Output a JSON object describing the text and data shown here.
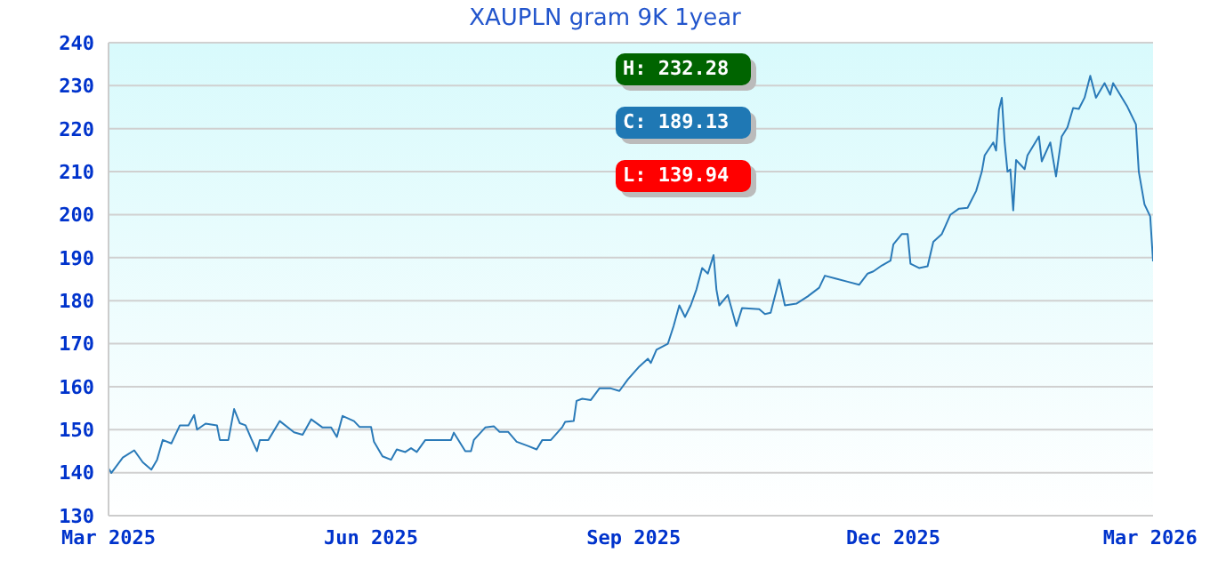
{
  "chart_data": {
    "type": "line",
    "title": "XAUPLN gram 9K 1year",
    "annotations": [
      "H: 232.28",
      "C: 189.13",
      "L: 139.94"
    ],
    "x": [
      "2025-03-01",
      "2025-03-02",
      "2025-03-06",
      "2025-03-10",
      "2025-03-13",
      "2025-03-16",
      "2025-03-18",
      "2025-03-20",
      "2025-03-23",
      "2025-03-26",
      "2025-03-29",
      "2025-03-31",
      "2025-04-01",
      "2025-04-04",
      "2025-04-08",
      "2025-04-09",
      "2025-04-12",
      "2025-04-14",
      "2025-04-16",
      "2025-04-18",
      "2025-04-20",
      "2025-04-22",
      "2025-04-23",
      "2025-04-26",
      "2025-04-30",
      "2025-05-05",
      "2025-05-08",
      "2025-05-11",
      "2025-05-15",
      "2025-05-18",
      "2025-05-20",
      "2025-05-22",
      "2025-05-26",
      "2025-05-28",
      "2025-06-01",
      "2025-06-02",
      "2025-06-05",
      "2025-06-08",
      "2025-06-10",
      "2025-06-13",
      "2025-06-15",
      "2025-06-17",
      "2025-06-20",
      "2025-06-29",
      "2025-06-30",
      "2025-07-04",
      "2025-07-06",
      "2025-07-07",
      "2025-07-11",
      "2025-07-14",
      "2025-07-16",
      "2025-07-19",
      "2025-07-22",
      "2025-07-26",
      "2025-07-29",
      "2025-07-31",
      "2025-08-03",
      "2025-08-07",
      "2025-08-08",
      "2025-08-11",
      "2025-08-12",
      "2025-08-14",
      "2025-08-17",
      "2025-08-20",
      "2025-08-24",
      "2025-08-27",
      "2025-08-30",
      "2025-09-03",
      "2025-09-06",
      "2025-09-07",
      "2025-09-09",
      "2025-09-13",
      "2025-09-15",
      "2025-09-17",
      "2025-09-19",
      "2025-09-21",
      "2025-09-23",
      "2025-09-25",
      "2025-09-27",
      "2025-09-29",
      "2025-09-30",
      "2025-10-01",
      "2025-10-04",
      "2025-10-07",
      "2025-10-09",
      "2025-10-15",
      "2025-10-17",
      "2025-10-19",
      "2025-10-22",
      "2025-10-24",
      "2025-10-28",
      "2025-11-01",
      "2025-11-05",
      "2025-11-07",
      "2025-11-11",
      "2025-11-15",
      "2025-11-19",
      "2025-11-22",
      "2025-11-24",
      "2025-11-27",
      "2025-11-30",
      "2025-12-01",
      "2025-12-04",
      "2025-12-06",
      "2025-12-07",
      "2025-12-10",
      "2025-12-13",
      "2025-12-15",
      "2025-12-18",
      "2025-12-21",
      "2025-12-24",
      "2025-12-27",
      "2025-12-30",
      "2026-01-01",
      "2026-01-02",
      "2026-01-05",
      "2026-01-06",
      "2026-01-07",
      "2026-01-08",
      "2026-01-09",
      "2026-01-10",
      "2026-01-11",
      "2026-01-12",
      "2026-01-13",
      "2026-01-16",
      "2026-01-17",
      "2026-01-21",
      "2026-01-22",
      "2026-01-25",
      "2026-01-27",
      "2026-01-29",
      "2026-01-31",
      "2026-02-02",
      "2026-02-04",
      "2026-02-06",
      "2026-02-08",
      "2026-02-10",
      "2026-02-13",
      "2026-02-15",
      "2026-02-16",
      "2026-02-21",
      "2026-02-24",
      "2026-02-25",
      "2026-02-27",
      "2026-03-01",
      "2026-03-02"
    ],
    "series": [
      {
        "color": "#2a7ab8",
        "values": [
          141,
          139.94,
          143.5,
          145.2,
          142.4,
          140.7,
          143,
          147.6,
          146.8,
          151,
          151,
          153.4,
          150,
          151.4,
          151,
          147.6,
          147.6,
          154.8,
          151.5,
          151,
          147.9,
          145,
          147.6,
          147.6,
          152,
          149.4,
          148.8,
          152.4,
          150.5,
          150.5,
          148.3,
          153.2,
          152,
          150.6,
          150.6,
          147.2,
          143.8,
          143,
          145.4,
          144.8,
          145.7,
          144.8,
          147.6,
          147.6,
          149.3,
          145,
          145,
          147.6,
          150.5,
          150.8,
          149.5,
          149.5,
          147.2,
          146.2,
          145.4,
          147.6,
          147.6,
          150.6,
          151.8,
          152,
          156.7,
          157.2,
          156.9,
          159.6,
          159.6,
          159,
          161.7,
          164.7,
          166.5,
          165.5,
          168.6,
          170,
          174.1,
          178.9,
          176.2,
          178.9,
          182.6,
          187.6,
          186.3,
          190.6,
          182.6,
          178.9,
          181.3,
          174.1,
          178.3,
          178,
          176.9,
          177.2,
          184.9,
          178.9,
          179.3,
          181,
          183,
          185.8,
          185.1,
          184.4,
          183.7,
          186.3,
          186.8,
          188.2,
          189.3,
          193.1,
          195.5,
          195.5,
          188.6,
          187.6,
          188,
          193.7,
          195.5,
          200,
          201.4,
          201.6,
          205.5,
          210,
          213.8,
          216.8,
          214.9,
          224.4,
          227.2,
          216.8,
          210,
          210.5,
          201,
          212.7,
          210.6,
          213.8,
          218.2,
          212.4,
          216.8,
          208.9,
          218.2,
          220.3,
          224.8,
          224.6,
          227.2,
          232.28,
          227.2,
          230.6,
          227.9,
          230.6,
          225.1,
          221,
          210,
          202.4,
          199.6,
          189.13
        ]
      }
    ],
    "xlim": [
      "2025-03-01",
      "2026-03-02"
    ],
    "xticks": [
      {
        "value": "2025-03-01",
        "label": "Mar 2025"
      },
      {
        "value": "2025-06-01",
        "label": "Jun 2025"
      },
      {
        "value": "2025-09-01",
        "label": "Sep 2025"
      },
      {
        "value": "2025-12-01",
        "label": "Dec 2025"
      },
      {
        "value": "2026-03-01",
        "label": "Mar 2026"
      }
    ],
    "ylim": [
      130,
      240
    ],
    "yticks": [
      130,
      140,
      150,
      160,
      170,
      180,
      190,
      200,
      210,
      220,
      230,
      240
    ],
    "grid": "y",
    "marker": "none",
    "line_style": "solid"
  }
}
